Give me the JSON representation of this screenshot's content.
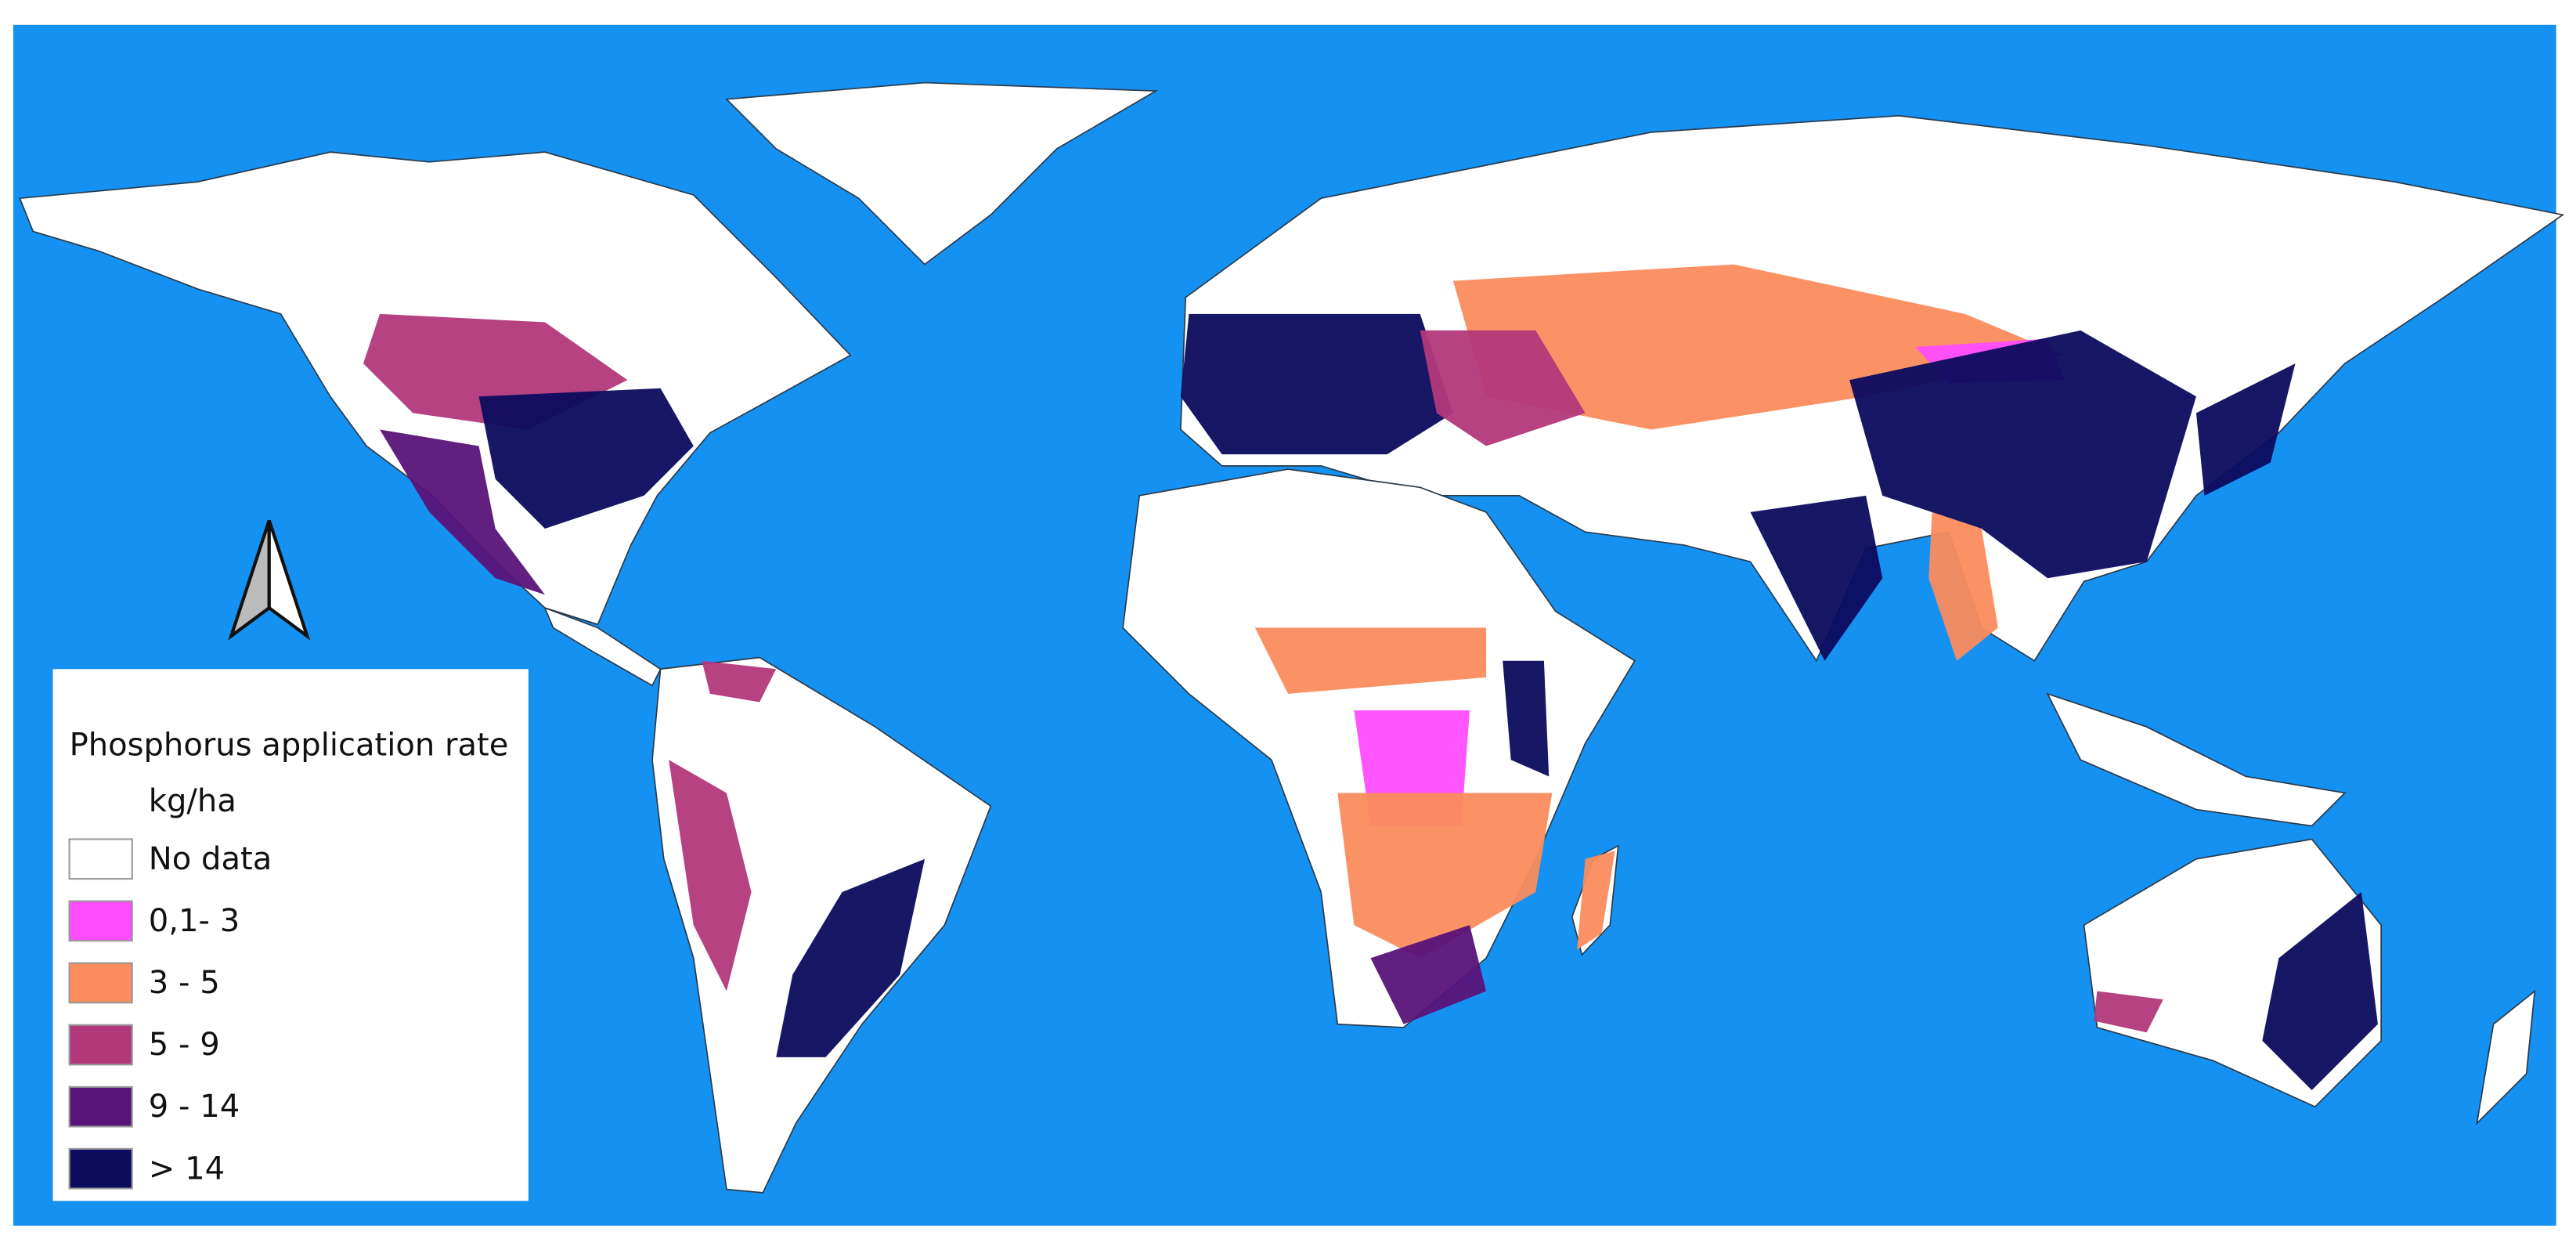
{
  "legend": {
    "title": "Phosphorus application rate",
    "unit": "kg/ha",
    "items": [
      {
        "label": "No data",
        "color": "#ffffff"
      },
      {
        "label": "0,1- 3",
        "color": "#ff4cff"
      },
      {
        "label": "3 - 5",
        "color": "#fa8c5e"
      },
      {
        "label": "5 - 9",
        "color": "#b3387b"
      },
      {
        "label": "9 - 14",
        "color": "#581378"
      },
      {
        "label": "> 14",
        "color": "#0c0b5e"
      }
    ]
  }
}
